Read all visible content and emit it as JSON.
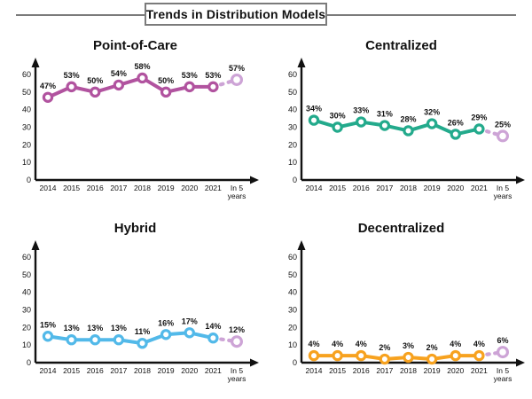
{
  "header": {
    "title": "Trends in Distribution Models"
  },
  "palette": {
    "axis": "#111111",
    "header_border": "#7b7b7b",
    "projection": "#cda4d6",
    "marker_fill": "#ffffff",
    "label_text": "#111111"
  },
  "chart_data": [
    {
      "type": "line",
      "title": "Point-of-Care",
      "categories": [
        "2014",
        "2015",
        "2016",
        "2017",
        "2018",
        "2019",
        "2020",
        "2021",
        "In 5\nyears"
      ],
      "values": [
        47,
        53,
        50,
        54,
        58,
        50,
        53,
        53,
        57
      ],
      "value_label_suffix": "%",
      "last_point_is_projection": true,
      "color": "#b1539f",
      "ylim": [
        0,
        60
      ],
      "yticks": [
        0,
        10,
        20,
        30,
        40,
        50,
        60
      ],
      "grid": false,
      "marker": "open-circle"
    },
    {
      "type": "line",
      "title": "Centralized",
      "categories": [
        "2014",
        "2015",
        "2016",
        "2017",
        "2018",
        "2019",
        "2020",
        "2021",
        "In 5\nyears"
      ],
      "values": [
        34,
        30,
        33,
        31,
        28,
        32,
        26,
        29,
        25
      ],
      "value_label_suffix": "%",
      "last_point_is_projection": true,
      "color": "#23aa8c",
      "ylim": [
        0,
        60
      ],
      "yticks": [
        0,
        10,
        20,
        30,
        40,
        50,
        60
      ],
      "grid": false,
      "marker": "open-circle"
    },
    {
      "type": "line",
      "title": "Hybrid",
      "categories": [
        "2014",
        "2015",
        "2016",
        "2017",
        "2018",
        "2019",
        "2020",
        "2021",
        "In 5\nyears"
      ],
      "values": [
        15,
        13,
        13,
        13,
        11,
        16,
        17,
        14,
        12
      ],
      "value_label_suffix": "%",
      "last_point_is_projection": true,
      "color": "#52b9e9",
      "ylim": [
        0,
        60
      ],
      "yticks": [
        0,
        10,
        20,
        30,
        40,
        50,
        60
      ],
      "grid": false,
      "marker": "open-circle"
    },
    {
      "type": "line",
      "title": "Decentralized",
      "categories": [
        "2014",
        "2015",
        "2016",
        "2017",
        "2018",
        "2019",
        "2020",
        "2021",
        "In 5\nyears"
      ],
      "values": [
        4,
        4,
        4,
        2,
        3,
        2,
        4,
        4,
        6
      ],
      "value_label_suffix": "%",
      "last_point_is_projection": true,
      "color": "#f7a21f",
      "ylim": [
        0,
        60
      ],
      "yticks": [
        0,
        10,
        20,
        30,
        40,
        50,
        60
      ],
      "grid": false,
      "marker": "open-circle"
    }
  ]
}
